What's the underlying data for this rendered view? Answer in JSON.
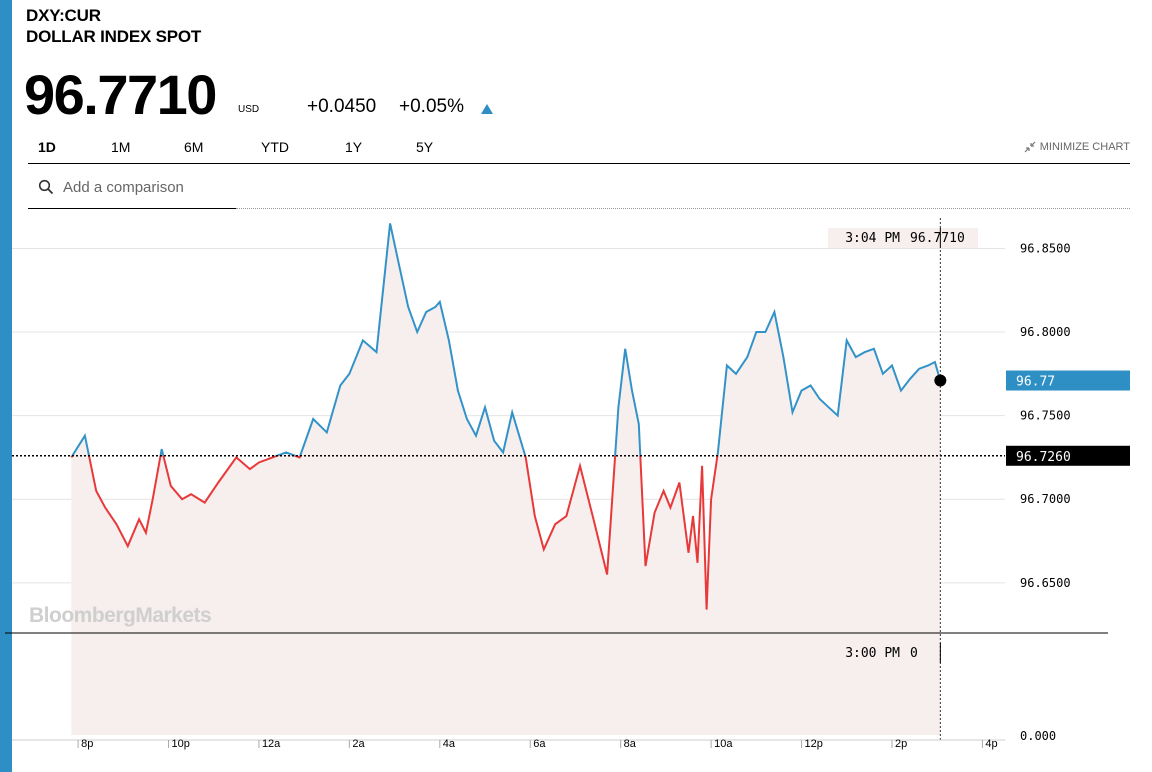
{
  "header": {
    "ticker": "DXY:CUR",
    "name": "DOLLAR INDEX SPOT",
    "price": "96.7710",
    "currency": "USD",
    "change": "+0.0450",
    "change_pct": "+0.05%"
  },
  "tabs": [
    {
      "label": "1D",
      "active": true
    },
    {
      "label": "1M",
      "active": false
    },
    {
      "label": "6M",
      "active": false
    },
    {
      "label": "YTD",
      "active": false
    },
    {
      "label": "1Y",
      "active": false
    },
    {
      "label": "5Y",
      "active": false
    }
  ],
  "minimize_label": "MINIMIZE CHART",
  "search": {
    "placeholder": "Add a comparison"
  },
  "colors": {
    "accent": "#2e8fc4",
    "up": "#3393c9",
    "down": "#e8393a",
    "fill": "#f7eeee"
  },
  "watermark": "BloombergMarkets",
  "chart_data": {
    "type": "line",
    "series_color_rule": "blue above previous close, red below",
    "ylim": [
      96.62,
      96.87
    ],
    "y_ticks": [
      "96.8500",
      "96.8000",
      "96.7500",
      "96.7000",
      "96.6500"
    ],
    "y_tick_values": [
      96.85,
      96.8,
      96.75,
      96.7,
      96.65
    ],
    "previous_close": 96.726,
    "previous_close_label": "96.7260",
    "last_label": "96.77",
    "last_value": 96.771,
    "x_ticks": [
      "8p",
      "10p",
      "12a",
      "2a",
      "4a",
      "6a",
      "8a",
      "10a",
      "12p",
      "2p",
      "4p"
    ],
    "x_tick_hours": [
      20,
      22,
      24,
      26,
      28,
      30,
      32,
      34,
      36,
      38,
      40
    ],
    "x_range_hours": [
      19.6,
      40.5
    ],
    "crosshair": {
      "time": "3:04 PM",
      "value": "96.7710",
      "time_hours": 39.07
    },
    "volume": {
      "time": "3:00 PM",
      "value": "0",
      "y_tick": "0.000"
    },
    "x": [
      19.85,
      20.15,
      20.4,
      20.6,
      20.85,
      21.1,
      21.35,
      21.5,
      21.65,
      21.85,
      22.05,
      22.3,
      22.5,
      22.8,
      23.1,
      23.5,
      23.8,
      24.0,
      24.3,
      24.6,
      24.9,
      25.2,
      25.5,
      25.8,
      26.0,
      26.3,
      26.6,
      26.9,
      27.1,
      27.3,
      27.5,
      27.7,
      27.9,
      28.0,
      28.2,
      28.4,
      28.6,
      28.8,
      29.0,
      29.2,
      29.4,
      29.6,
      29.9,
      30.1,
      30.3,
      30.55,
      30.8,
      31.1,
      31.4,
      31.7,
      31.85,
      31.95,
      32.1,
      32.25,
      32.4,
      32.55,
      32.75,
      32.95,
      33.1,
      33.3,
      33.5,
      33.6,
      33.7,
      33.8,
      33.9,
      34.0,
      34.15,
      34.35,
      34.55,
      34.8,
      35.0,
      35.2,
      35.4,
      35.6,
      35.8,
      36.0,
      36.2,
      36.4,
      36.6,
      36.8,
      37.0,
      37.2,
      37.4,
      37.6,
      37.8,
      38.0,
      38.2,
      38.4,
      38.6,
      38.8,
      38.95,
      39.07
    ],
    "y": [
      96.725,
      96.738,
      96.705,
      96.695,
      96.685,
      96.672,
      96.688,
      96.68,
      96.7,
      96.73,
      96.708,
      96.7,
      96.703,
      96.698,
      96.71,
      96.725,
      96.718,
      96.722,
      96.725,
      96.728,
      96.725,
      96.748,
      96.74,
      96.768,
      96.775,
      96.795,
      96.788,
      96.865,
      96.84,
      96.815,
      96.8,
      96.812,
      96.815,
      96.818,
      96.795,
      96.765,
      96.748,
      96.738,
      96.755,
      96.735,
      96.728,
      96.752,
      96.725,
      96.69,
      96.67,
      96.685,
      96.69,
      96.72,
      96.688,
      96.655,
      96.715,
      96.755,
      96.79,
      96.765,
      96.745,
      96.66,
      96.692,
      96.705,
      96.695,
      96.71,
      96.668,
      96.69,
      96.662,
      96.72,
      96.634,
      96.7,
      96.728,
      96.78,
      96.775,
      96.785,
      96.8,
      96.8,
      96.812,
      96.785,
      96.752,
      96.765,
      96.768,
      96.76,
      96.755,
      96.75,
      96.795,
      96.785,
      96.788,
      96.79,
      96.775,
      96.78,
      96.765,
      96.772,
      96.778,
      96.78,
      96.782,
      96.771
    ]
  }
}
